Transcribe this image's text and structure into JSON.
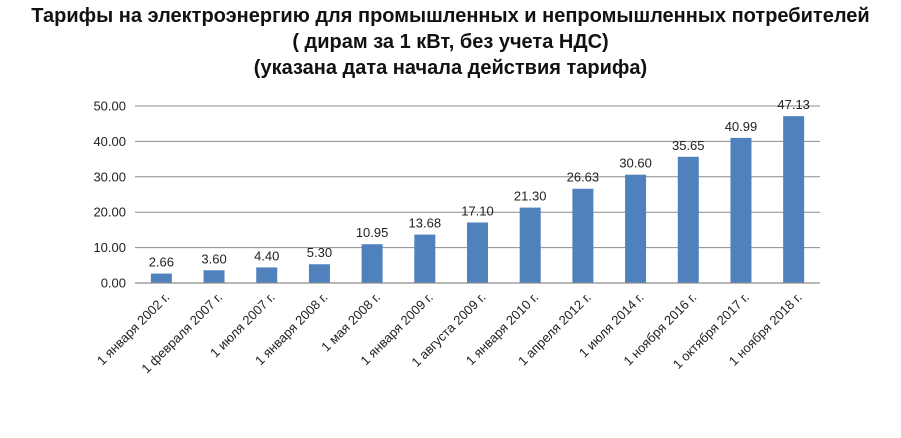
{
  "header": {
    "line1": "Тарифы на электроэнергию  для промышленных и непромышленных потребителей",
    "line2": "( дирам за 1 кВт, без учета НДС)",
    "line3": "(указана дата начала действия тарифа)"
  },
  "chart_data": {
    "type": "bar",
    "title": "Тарифы на электроэнергию  для промышленных и непромышленных потребителей ( дирам за 1 кВт, без учета НДС) (указана дата начала действия тарифа)",
    "categories": [
      "1 января 2002 г.",
      "1 февраля 2007 г.",
      "1 июля 2007 г.",
      "1 января 2008 г.",
      "1 мая 2008 г.",
      "1 января 2009 г.",
      "1 августа 2009 г.",
      "1 января 2010 г.",
      "1 апреля 2012 г.",
      "1 июля 2014 г.",
      "1 ноября 2016 г.",
      "1 октября 2017 г.",
      "1 ноября 2018 г."
    ],
    "values": [
      2.66,
      3.6,
      4.4,
      5.3,
      10.95,
      13.68,
      17.1,
      21.3,
      26.63,
      30.6,
      35.65,
      40.99,
      47.13
    ],
    "value_labels": [
      "2.66",
      "3.60",
      "4.40",
      "5.30",
      "10.95",
      "13.68",
      "17.10",
      "21.30",
      "26.63",
      "30.60",
      "35.65",
      "40.99",
      "47.13"
    ],
    "yticks": [
      0,
      10,
      20,
      30,
      40,
      50
    ],
    "ytick_labels": [
      "0.00",
      "10.00",
      "20.00",
      "30.00",
      "40.00",
      "50.00"
    ],
    "ylim": [
      0,
      50
    ],
    "grid": true,
    "legend": "none",
    "bar_color": "#4f81bd",
    "grid_color": "#8c8c8c"
  }
}
